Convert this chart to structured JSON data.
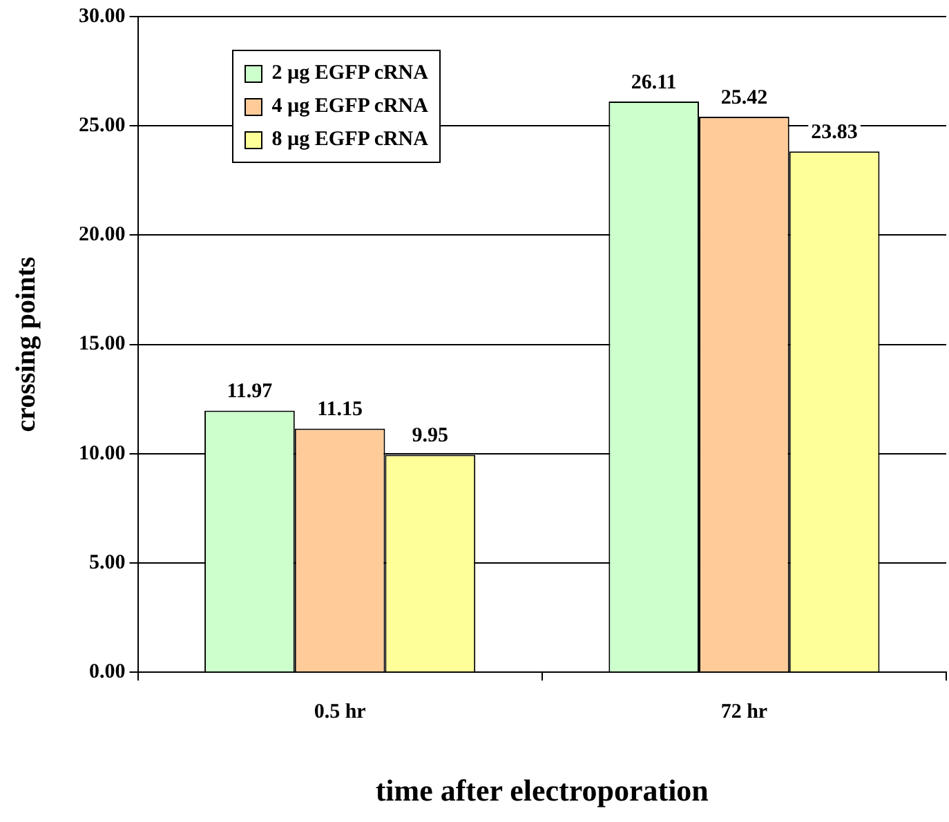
{
  "chart_data": {
    "type": "bar",
    "xlabel": "time after electroporation",
    "ylabel": "crossing points",
    "categories": [
      "0.5 hr",
      "72 hr"
    ],
    "series": [
      {
        "name": "2 µg EGFP cRNA",
        "color": "#ccffcc",
        "values": [
          11.97,
          26.11
        ]
      },
      {
        "name": "4 µg EGFP cRNA",
        "color": "#ffcc99",
        "values": [
          11.15,
          25.42
        ]
      },
      {
        "name": "8 µg EGFP cRNA",
        "color": "#ffff99",
        "values": [
          9.95,
          23.83
        ]
      }
    ],
    "ylim": [
      0,
      30
    ],
    "yticks": [
      {
        "value": 0,
        "label": "0.00"
      },
      {
        "value": 5,
        "label": "5.00"
      },
      {
        "value": 10,
        "label": "10.00"
      },
      {
        "value": 15,
        "label": "15.00"
      },
      {
        "value": 20,
        "label": "20.00"
      },
      {
        "value": 25,
        "label": "25.00"
      },
      {
        "value": 30,
        "label": "30.00"
      }
    ],
    "grid": "y",
    "legend": "top left",
    "data_labels": true
  }
}
